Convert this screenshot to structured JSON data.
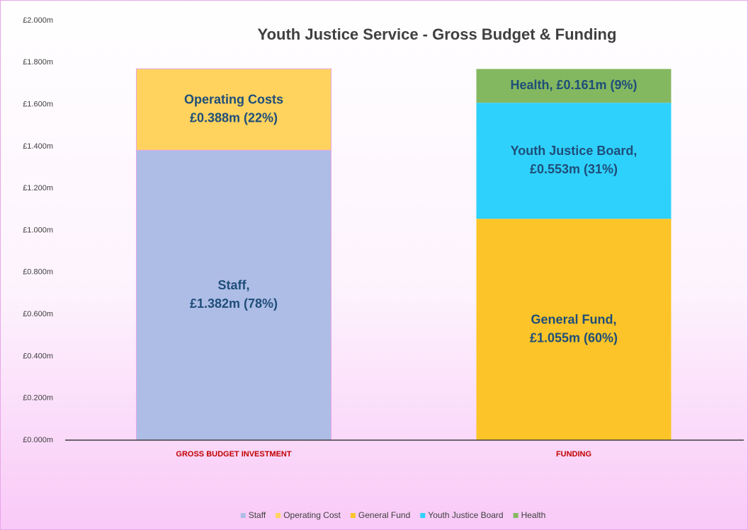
{
  "chart_data": {
    "type": "stacked_bar",
    "title": "Youth Justice Service - Gross Budget & Funding",
    "categories": [
      "GROSS BUDGET INVESTMENT",
      "FUNDING"
    ],
    "series": [
      {
        "name": "Staff",
        "color": "#aebde6",
        "values": [
          1.382,
          null
        ],
        "value_labels": [
          [
            "Staff,",
            "£1.382m (78%)"
          ],
          null
        ]
      },
      {
        "name": "Operating Cost",
        "color": "#ffd35e",
        "values": [
          0.388,
          null
        ],
        "value_labels": [
          [
            "Operating Costs",
            "£0.388m (22%)"
          ],
          null
        ]
      },
      {
        "name": "General Fund",
        "color": "#fcc428",
        "values": [
          null,
          1.055
        ],
        "value_labels": [
          null,
          [
            "General Fund,",
            "£1.055m  (60%)"
          ]
        ]
      },
      {
        "name": "Youth Justice Board",
        "color": "#2ed1fc",
        "values": [
          null,
          0.553
        ],
        "value_labels": [
          null,
          [
            "Youth Justice Board,",
            "£0.553m (31%)"
          ]
        ]
      },
      {
        "name": "Health",
        "color": "#84b860",
        "values": [
          null,
          0.161
        ],
        "value_labels": [
          null,
          [
            "Health, £0.161m (9%)"
          ]
        ]
      }
    ],
    "ylim": [
      0,
      2
    ],
    "yticks": [
      {
        "value": 0,
        "label": "£0.000m"
      },
      {
        "value": 0.2,
        "label": "£0.200m"
      },
      {
        "value": 0.4,
        "label": "£0.400m"
      },
      {
        "value": 0.6,
        "label": "£0.600m"
      },
      {
        "value": 0.8,
        "label": "£0.800m"
      },
      {
        "value": 1.0,
        "label": "£1.000m"
      },
      {
        "value": 1.2,
        "label": "£1.200m"
      },
      {
        "value": 1.4,
        "label": "£1.400m"
      },
      {
        "value": 1.6,
        "label": "£1.600m"
      },
      {
        "value": 1.8,
        "label": "£1.800m"
      },
      {
        "value": 2.0,
        "label": "£2.000m"
      }
    ],
    "grid": false,
    "legend": "bottom"
  }
}
